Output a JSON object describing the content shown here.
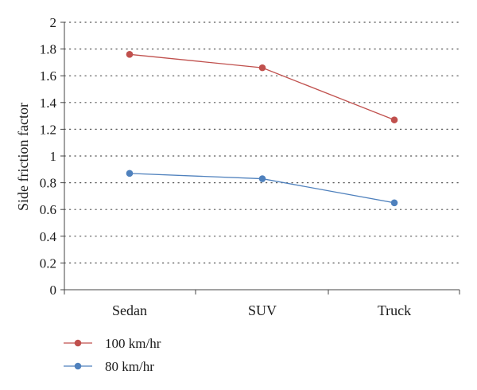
{
  "chart_data": {
    "type": "line",
    "title": "",
    "xlabel": "",
    "ylabel": "Side friction factor",
    "ylim": [
      0,
      2
    ],
    "yticks": [
      0,
      0.2,
      0.4,
      0.6,
      0.8,
      1,
      1.2,
      1.4,
      1.6,
      1.8,
      2
    ],
    "ytick_labels": [
      "0",
      "0.2",
      "0.4",
      "0.6",
      "0.8",
      "1",
      "1.2",
      "1.4",
      "1.6",
      "1.8",
      "2"
    ],
    "categories": [
      "Sedan",
      "SUV",
      "Truck"
    ],
    "grid": "horizontal dotted",
    "legend_position": "bottom-left",
    "series": [
      {
        "name": "100 km/hr",
        "color": "#c0504d",
        "values": [
          1.76,
          1.66,
          1.27
        ]
      },
      {
        "name": "80 km/hr",
        "color": "#4f81bd",
        "values": [
          0.87,
          0.83,
          0.65
        ]
      }
    ]
  }
}
